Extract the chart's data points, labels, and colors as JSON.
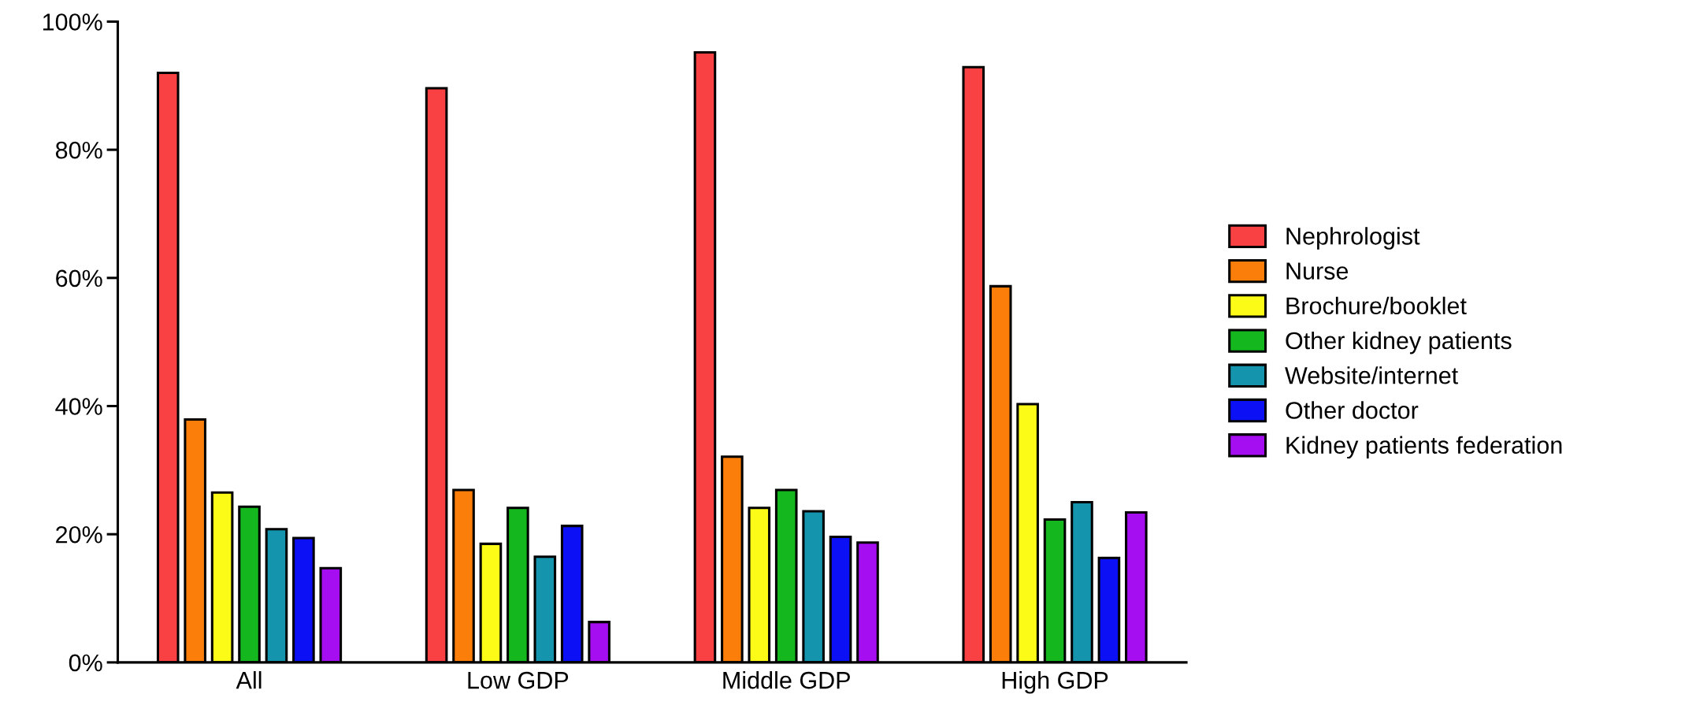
{
  "chart_data": {
    "type": "bar",
    "categories": [
      "All",
      "Low GDP",
      "Middle GDP",
      "High GDP"
    ],
    "series": [
      {
        "name": "Nephrologist",
        "color": "#f94144",
        "values": [
          92.0,
          89.6,
          95.2,
          92.9
        ]
      },
      {
        "name": "Nurse",
        "color": "#fb7e0a",
        "values": [
          37.9,
          26.9,
          32.1,
          58.7
        ]
      },
      {
        "name": "Brochure/booklet",
        "color": "#fbfb17",
        "values": [
          26.5,
          18.5,
          24.1,
          40.3
        ]
      },
      {
        "name": "Other kidney patients",
        "color": "#14b81e",
        "values": [
          24.3,
          24.1,
          26.9,
          22.3
        ]
      },
      {
        "name": "Website/internet",
        "color": "#1495ad",
        "values": [
          20.8,
          16.5,
          23.6,
          25.0
        ]
      },
      {
        "name": "Other doctor",
        "color": "#0c10f5",
        "values": [
          19.4,
          21.3,
          19.6,
          16.3
        ]
      },
      {
        "name": "Kidney patients federation",
        "color": "#a50ef0",
        "values": [
          14.7,
          6.3,
          18.7,
          23.4
        ]
      }
    ],
    "ylim": [
      0,
      100
    ],
    "yticks": [
      {
        "value": 0,
        "label": "0%"
      },
      {
        "value": 20,
        "label": "20%"
      },
      {
        "value": 40,
        "label": "40%"
      },
      {
        "value": 60,
        "label": "60%"
      },
      {
        "value": 80,
        "label": "80%"
      },
      {
        "value": 100,
        "label": "100%"
      }
    ],
    "grid": false,
    "legend": "right"
  }
}
